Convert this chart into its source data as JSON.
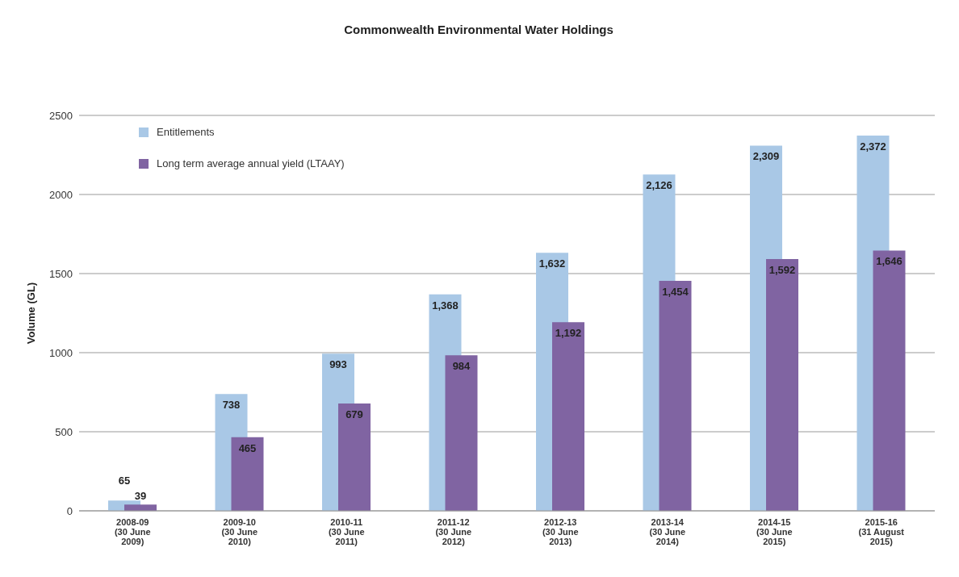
{
  "chart_data": {
    "type": "bar",
    "title": "Commonwealth Environmental Water Holdings",
    "ylabel": "Volume (GL)",
    "categories": [
      "2008-09\n(30 June\n2009)",
      "2009-10\n(30 June\n2010)",
      "2010-11\n(30 June\n2011)",
      "2011-12\n(30 June\n2012)",
      "2012-13\n(30 June\n2013)",
      "2013-14\n(30 June\n2014)",
      "2014-15\n(30 June\n2015)",
      "2015-16\n(31 August\n2015)"
    ],
    "series": [
      {
        "name": "Entitlements",
        "color": "#a9c8e6",
        "values": [
          65,
          738,
          993,
          1368,
          1632,
          2126,
          2309,
          2372
        ],
        "value_labels": [
          "65",
          "738",
          "993",
          "1,368",
          "1,632",
          "2,126",
          "2,309",
          "2,372"
        ]
      },
      {
        "name": "Long term average annual yield (LTAAY)",
        "color": "#8064a2",
        "values": [
          39,
          465,
          679,
          984,
          1192,
          1454,
          1592,
          1646
        ],
        "value_labels": [
          "39",
          "465",
          "679",
          "984",
          "1,192",
          "1,454",
          "1,592",
          "1,646"
        ]
      }
    ],
    "ylim": [
      0,
      2500
    ],
    "yticks": [
      0,
      500,
      1000,
      1500,
      2000,
      2500
    ],
    "grid": "y",
    "legend": "top left"
  }
}
